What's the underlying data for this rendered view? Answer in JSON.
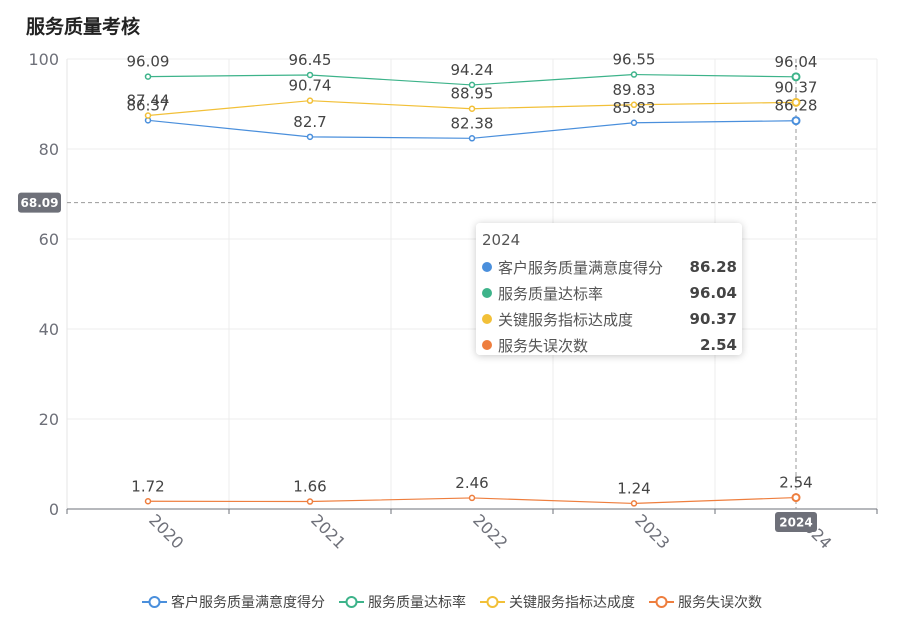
{
  "title": "服务质量考核",
  "chart_data": {
    "type": "line",
    "title": "服务质量考核",
    "categories": [
      "2020",
      "2021",
      "2022",
      "2023",
      "2024"
    ],
    "ylim": [
      0,
      100
    ],
    "yticks": [
      0,
      20,
      40,
      60,
      80,
      100
    ],
    "grid": true,
    "legend_position": "bottom",
    "series": [
      {
        "name": "客户服务质量满意度得分",
        "color": "#4a8fdc",
        "values": [
          86.37,
          82.7,
          82.38,
          85.83,
          86.28
        ]
      },
      {
        "name": "服务质量达标率",
        "color": "#3db38a",
        "values": [
          96.09,
          96.45,
          94.24,
          96.55,
          96.04
        ]
      },
      {
        "name": "关键服务指标达成度",
        "color": "#f2c038",
        "values": [
          87.44,
          90.74,
          88.95,
          89.83,
          90.37
        ]
      },
      {
        "name": "服务失误次数",
        "color": "#ee7e3e",
        "values": [
          1.72,
          1.66,
          2.46,
          1.24,
          2.54
        ]
      }
    ],
    "crosshair": {
      "y_value": 68.09,
      "y_label": "68.09",
      "x_category": "2024",
      "x_label": "2024"
    }
  },
  "tooltip": {
    "title": "2024",
    "rows": [
      {
        "name": "客户服务质量满意度得分",
        "value": "86.28",
        "color": "#4a8fdc"
      },
      {
        "name": "服务质量达标率",
        "value": "96.04",
        "color": "#3db38a"
      },
      {
        "name": "关键服务指标达成度",
        "value": "90.37",
        "color": "#f2c038"
      },
      {
        "name": "服务失误次数",
        "value": "2.54",
        "color": "#ee7e3e"
      }
    ]
  },
  "legend": [
    {
      "name": "客户服务质量满意度得分",
      "color": "#4a8fdc"
    },
    {
      "name": "服务质量达标率",
      "color": "#3db38a"
    },
    {
      "name": "关键服务指标达成度",
      "color": "#f2c038"
    },
    {
      "name": "服务失误次数",
      "color": "#ee7e3e"
    }
  ]
}
